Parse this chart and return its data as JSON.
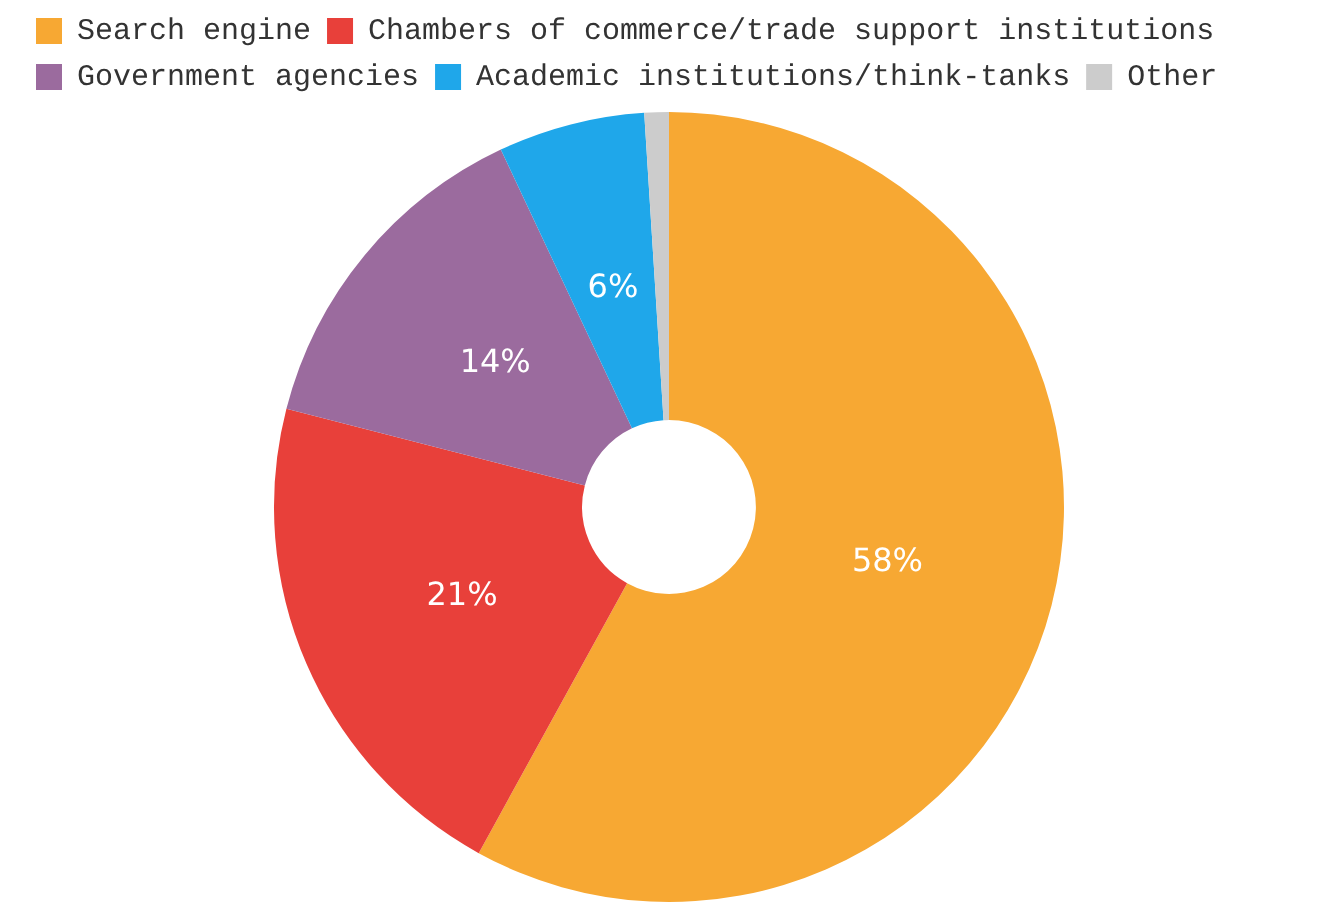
{
  "chart_data": {
    "type": "donut",
    "categories": [
      "Search engine",
      "Chambers of commerce/trade support institutions",
      "Government agencies",
      "Academic institutions/think-tanks",
      "Other"
    ],
    "values": [
      58,
      21,
      14,
      6,
      1
    ],
    "colors": [
      "#f7a833",
      "#e8403a",
      "#9b6b9e",
      "#1fa7ea",
      "#cccccc"
    ],
    "value_labels": [
      "58%",
      "21%",
      "14%",
      "6%",
      null
    ],
    "legend": "top left"
  }
}
